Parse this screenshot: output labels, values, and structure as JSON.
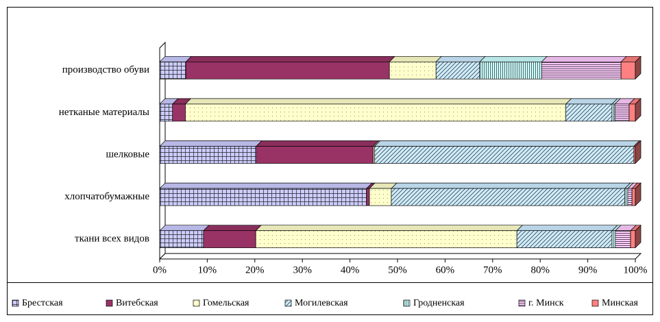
{
  "chart_data": {
    "type": "bar",
    "orientation": "horizontal",
    "stacked": true,
    "categories": [
      "производство обуви",
      "нетканые материалы",
      "шелковые",
      "хлопчатобумажные",
      "ткани всех видов"
    ],
    "series": [
      {
        "name": "Брестская",
        "color": "#ccccff",
        "values": [
          5.5,
          2.7,
          20.3,
          43.5,
          9.2
        ]
      },
      {
        "name": "Витебская",
        "color": "#993366",
        "values": [
          42.8,
          2.7,
          24.6,
          0.6,
          11
        ]
      },
      {
        "name": "Гомельская",
        "color": "#ffffcc",
        "values": [
          9.8,
          80,
          0.3,
          4.6,
          54.9
        ]
      },
      {
        "name": "Могилевская",
        "color": "#ccecff",
        "values": [
          9.2,
          9.7,
          54.5,
          49.1,
          20
        ]
      },
      {
        "name": "Гродненская",
        "color": "#ccffff",
        "values": [
          13,
          0.6,
          0,
          0.6,
          0.7
        ]
      },
      {
        "name": "г. Минск",
        "color": "#ffccff",
        "values": [
          16.7,
          3,
          0,
          0.9,
          3.2
        ]
      },
      {
        "name": "Минская",
        "color": "#ff8080",
        "values": [
          3,
          1.3,
          0.3,
          0.7,
          1
        ]
      }
    ],
    "xlim": [
      0,
      100
    ],
    "xticks": [
      {
        "value": 0,
        "label": "0%"
      },
      {
        "value": 10,
        "label": "10%"
      },
      {
        "value": 20,
        "label": "20%"
      },
      {
        "value": 30,
        "label": "30%"
      },
      {
        "value": 40,
        "label": "40%"
      },
      {
        "value": 50,
        "label": "50%"
      },
      {
        "value": 60,
        "label": "60%"
      },
      {
        "value": 70,
        "label": "70%"
      },
      {
        "value": 80,
        "label": "80%"
      },
      {
        "value": 90,
        "label": "90%"
      },
      {
        "value": 100,
        "label": "100%"
      }
    ],
    "legend": "bottom"
  }
}
